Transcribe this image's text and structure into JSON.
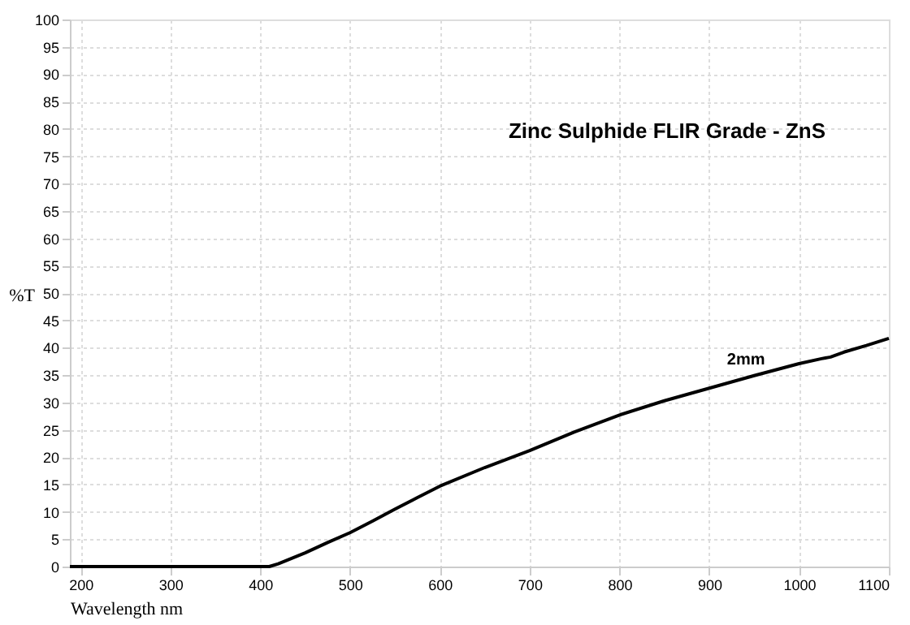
{
  "chart_data": {
    "type": "line",
    "title": "Zinc Sulphide FLIR Grade - ZnS",
    "xlabel": "Wavelength nm",
    "ylabel": "%T",
    "x": [
      188,
      250,
      300,
      350,
      400,
      410,
      420,
      435,
      450,
      475,
      500,
      525,
      550,
      575,
      600,
      650,
      700,
      750,
      800,
      850,
      900,
      950,
      1000,
      1025,
      1035,
      1050,
      1075,
      1100
    ],
    "series": [
      {
        "name": "2mm",
        "color": "#000000",
        "values": [
          0,
          0,
          0,
          0,
          0,
          0,
          0.5,
          1.5,
          2.5,
          4.4,
          6.2,
          8.3,
          10.5,
          12.6,
          14.7,
          18.1,
          21.2,
          24.6,
          27.7,
          30.3,
          32.6,
          34.9,
          37.1,
          38.0,
          38.3,
          39.2,
          40.4,
          41.7
        ]
      }
    ],
    "xlim": [
      188,
      1100
    ],
    "xticks": [
      200,
      300,
      400,
      500,
      600,
      700,
      800,
      900,
      1000,
      1100
    ],
    "ylim": [
      0,
      100
    ],
    "yticks": [
      0,
      5,
      10,
      15,
      20,
      25,
      30,
      35,
      40,
      45,
      50,
      55,
      60,
      65,
      70,
      75,
      80,
      85,
      90,
      95,
      100
    ],
    "grid": true,
    "marker": "none",
    "line_style": "solid"
  }
}
